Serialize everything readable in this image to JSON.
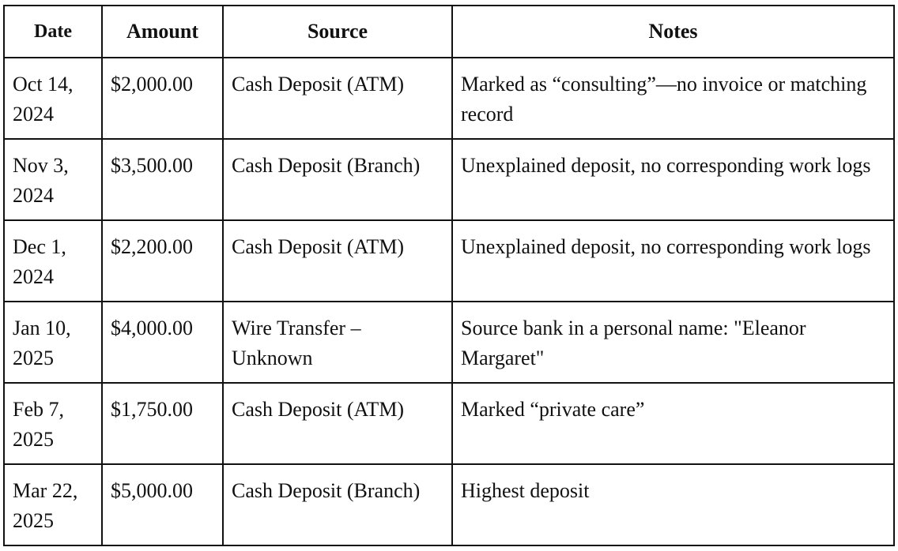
{
  "table": {
    "headers": [
      "Date",
      "Amount",
      "Source",
      "Notes"
    ],
    "rows": [
      {
        "date": "Oct 14, 2024",
        "amount": "$2,000.00",
        "source": "Cash Deposit (ATM)",
        "notes": "Marked as “consulting”—no invoice or matching record"
      },
      {
        "date": "Nov 3, 2024",
        "amount": "$3,500.00",
        "source": "Cash Deposit (Branch)",
        "notes": "Unexplained deposit, no corresponding work logs"
      },
      {
        "date": "Dec 1, 2024",
        "amount": "$2,200.00",
        "source": "Cash Deposit (ATM)",
        "notes": "Unexplained deposit, no corresponding work logs"
      },
      {
        "date": "Jan 10, 2025",
        "amount": "$4,000.00",
        "source": "Wire Transfer – Unknown",
        "notes": "Source bank in a personal name: \"Eleanor Margaret\""
      },
      {
        "date": "Feb 7, 2025",
        "amount": "$1,750.00",
        "source": "Cash Deposit (ATM)",
        "notes": "Marked “private care”"
      },
      {
        "date": "Mar 22, 2025",
        "amount": "$5,000.00",
        "source": "Cash Deposit (Branch)",
        "notes": "Highest deposit"
      }
    ]
  }
}
